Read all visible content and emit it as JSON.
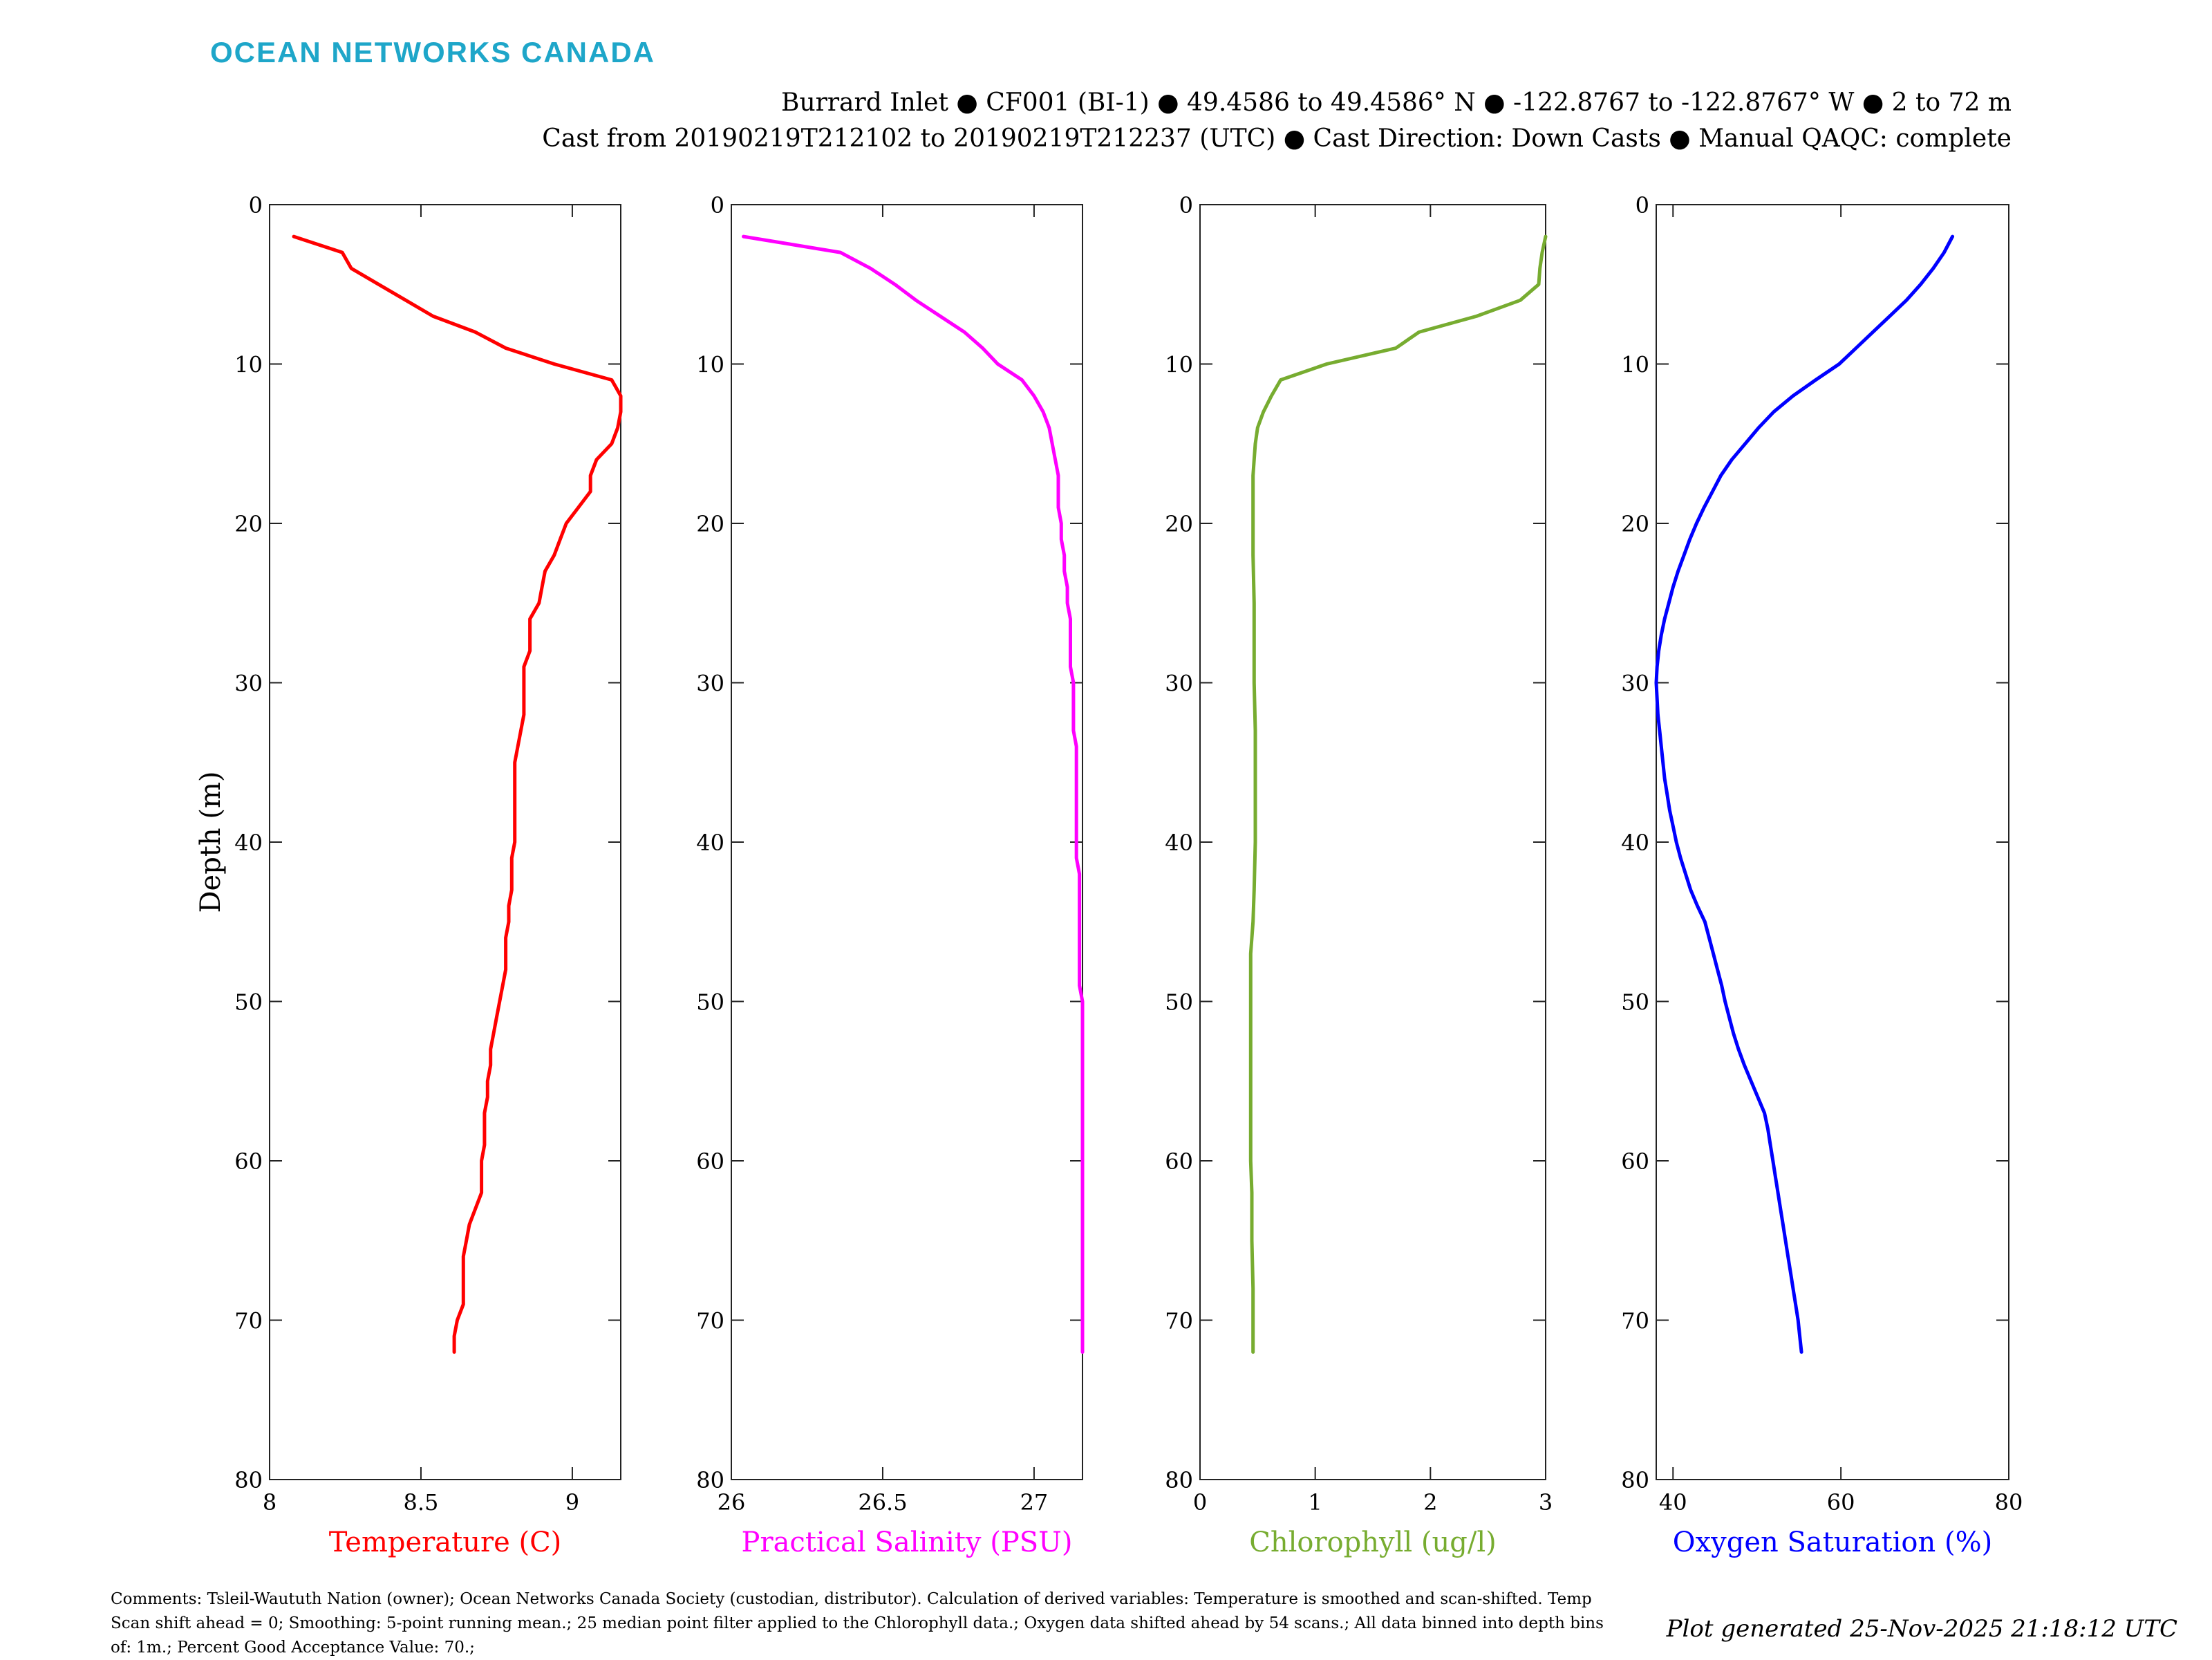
{
  "brand": {
    "logo_text": "OCEAN NETWORKS CANADA",
    "color": "#1ea6c9"
  },
  "header": {
    "line1": "Burrard Inlet ● CF001 (BI-1) ● 49.4586 to 49.4586° N ● -122.8767 to -122.8767° W ● 2 to 72 m",
    "line2": "Cast from 20190219T212102 to 20190219T212237 (UTC) ● Cast Direction: Down Casts ● Manual QAQC: complete"
  },
  "footer": {
    "comments": "Comments: Tsleil-Waututh Nation (owner); Ocean Networks Canada Society (custodian, distributor). Calculation of derived variables: Temperature is smoothed and scan-shifted. Temp Scan shift ahead = 0; Smoothing: 5-point running mean.; 25 median point filter applied to the Chlorophyll data.; Oxygen data shifted ahead by 54 scans.; All data binned into depth bins of: 1m.; Percent Good Acceptance Value: 70.;",
    "generated": "Plot generated 25-Nov-2025 21:18:12 UTC"
  },
  "chart_data": {
    "type": "line",
    "shared_y": {
      "label": "Depth (m)",
      "range": [
        0,
        80
      ],
      "reversed": true,
      "ticks": [
        0,
        10,
        20,
        30,
        40,
        50,
        60,
        70,
        80
      ],
      "tick_labels": [
        "0",
        "10",
        "20",
        "30",
        "40",
        "50",
        "60",
        "70",
        "80"
      ]
    },
    "grid": false,
    "panels": [
      {
        "xlabel": "Temperature (C)",
        "color": "#ff0000",
        "xlim": [
          8,
          9.16
        ],
        "xticks": [
          8,
          8.5,
          9
        ],
        "xtick_labels": [
          "8",
          "8.5",
          "9"
        ],
        "points": [
          [
            8.08,
            2
          ],
          [
            8.24,
            3
          ],
          [
            8.27,
            4
          ],
          [
            8.36,
            5
          ],
          [
            8.45,
            6
          ],
          [
            8.54,
            7
          ],
          [
            8.68,
            8
          ],
          [
            8.78,
            9
          ],
          [
            8.94,
            10
          ],
          [
            9.13,
            11
          ],
          [
            9.16,
            12
          ],
          [
            9.16,
            13
          ],
          [
            9.15,
            14
          ],
          [
            9.13,
            15
          ],
          [
            9.08,
            16
          ],
          [
            9.06,
            17
          ],
          [
            9.06,
            18
          ],
          [
            9.02,
            19
          ],
          [
            8.98,
            20
          ],
          [
            8.96,
            21
          ],
          [
            8.94,
            22
          ],
          [
            8.91,
            23
          ],
          [
            8.9,
            24
          ],
          [
            8.89,
            25
          ],
          [
            8.86,
            26
          ],
          [
            8.86,
            27
          ],
          [
            8.86,
            28
          ],
          [
            8.84,
            29
          ],
          [
            8.84,
            30
          ],
          [
            8.84,
            31
          ],
          [
            8.84,
            32
          ],
          [
            8.83,
            33
          ],
          [
            8.82,
            34
          ],
          [
            8.81,
            35
          ],
          [
            8.81,
            36
          ],
          [
            8.81,
            37
          ],
          [
            8.81,
            38
          ],
          [
            8.81,
            39
          ],
          [
            8.81,
            40
          ],
          [
            8.8,
            41
          ],
          [
            8.8,
            42
          ],
          [
            8.8,
            43
          ],
          [
            8.79,
            44
          ],
          [
            8.79,
            45
          ],
          [
            8.78,
            46
          ],
          [
            8.78,
            47
          ],
          [
            8.78,
            48
          ],
          [
            8.77,
            49
          ],
          [
            8.76,
            50
          ],
          [
            8.75,
            51
          ],
          [
            8.74,
            52
          ],
          [
            8.73,
            53
          ],
          [
            8.73,
            54
          ],
          [
            8.72,
            55
          ],
          [
            8.72,
            56
          ],
          [
            8.71,
            57
          ],
          [
            8.71,
            58
          ],
          [
            8.71,
            59
          ],
          [
            8.7,
            60
          ],
          [
            8.7,
            61
          ],
          [
            8.7,
            62
          ],
          [
            8.68,
            63
          ],
          [
            8.66,
            64
          ],
          [
            8.65,
            65
          ],
          [
            8.64,
            66
          ],
          [
            8.64,
            67
          ],
          [
            8.64,
            68
          ],
          [
            8.64,
            69
          ],
          [
            8.62,
            70
          ],
          [
            8.61,
            71
          ],
          [
            8.61,
            72
          ]
        ]
      },
      {
        "xlabel": "Practical Salinity (PSU)",
        "color": "#ff00ff",
        "xlim": [
          26,
          27.16
        ],
        "xticks": [
          26,
          26.5,
          27
        ],
        "xtick_labels": [
          "26",
          "26.5",
          "27"
        ],
        "points": [
          [
            26.04,
            2
          ],
          [
            26.36,
            3
          ],
          [
            26.46,
            4
          ],
          [
            26.54,
            5
          ],
          [
            26.61,
            6
          ],
          [
            26.69,
            7
          ],
          [
            26.77,
            8
          ],
          [
            26.83,
            9
          ],
          [
            26.88,
            10
          ],
          [
            26.96,
            11
          ],
          [
            27.0,
            12
          ],
          [
            27.03,
            13
          ],
          [
            27.05,
            14
          ],
          [
            27.06,
            15
          ],
          [
            27.07,
            16
          ],
          [
            27.08,
            17
          ],
          [
            27.08,
            18
          ],
          [
            27.08,
            19
          ],
          [
            27.09,
            20
          ],
          [
            27.09,
            21
          ],
          [
            27.1,
            22
          ],
          [
            27.1,
            23
          ],
          [
            27.11,
            24
          ],
          [
            27.11,
            25
          ],
          [
            27.12,
            26
          ],
          [
            27.12,
            27
          ],
          [
            27.12,
            28
          ],
          [
            27.12,
            29
          ],
          [
            27.13,
            30
          ],
          [
            27.13,
            31
          ],
          [
            27.13,
            32
          ],
          [
            27.13,
            33
          ],
          [
            27.14,
            34
          ],
          [
            27.14,
            35
          ],
          [
            27.14,
            36
          ],
          [
            27.14,
            37
          ],
          [
            27.14,
            38
          ],
          [
            27.14,
            39
          ],
          [
            27.14,
            40
          ],
          [
            27.14,
            41
          ],
          [
            27.15,
            42
          ],
          [
            27.15,
            43
          ],
          [
            27.15,
            44
          ],
          [
            27.15,
            45
          ],
          [
            27.15,
            46
          ],
          [
            27.15,
            47
          ],
          [
            27.15,
            48
          ],
          [
            27.15,
            49
          ],
          [
            27.16,
            50
          ],
          [
            27.16,
            52
          ],
          [
            27.16,
            55
          ],
          [
            27.16,
            60
          ],
          [
            27.16,
            65
          ],
          [
            27.16,
            70
          ],
          [
            27.16,
            72
          ]
        ]
      },
      {
        "xlabel": "Chlorophyll (ug/l)",
        "color": "#77ac30",
        "xlim": [
          0,
          3
        ],
        "xticks": [
          0,
          1,
          2,
          3
        ],
        "xtick_labels": [
          "0",
          "1",
          "2",
          "3"
        ],
        "points": [
          [
            3.0,
            2
          ],
          [
            2.97,
            3
          ],
          [
            2.95,
            4
          ],
          [
            2.94,
            5
          ],
          [
            2.78,
            6
          ],
          [
            2.4,
            7
          ],
          [
            1.9,
            8
          ],
          [
            1.7,
            9
          ],
          [
            1.1,
            10
          ],
          [
            0.7,
            11
          ],
          [
            0.62,
            12
          ],
          [
            0.55,
            13
          ],
          [
            0.5,
            14
          ],
          [
            0.48,
            15
          ],
          [
            0.47,
            16
          ],
          [
            0.46,
            17
          ],
          [
            0.46,
            18
          ],
          [
            0.46,
            20
          ],
          [
            0.46,
            22
          ],
          [
            0.47,
            25
          ],
          [
            0.47,
            28
          ],
          [
            0.47,
            30
          ],
          [
            0.48,
            33
          ],
          [
            0.48,
            36
          ],
          [
            0.48,
            40
          ],
          [
            0.47,
            43
          ],
          [
            0.46,
            45
          ],
          [
            0.44,
            47
          ],
          [
            0.44,
            49
          ],
          [
            0.44,
            50
          ],
          [
            0.44,
            52
          ],
          [
            0.44,
            55
          ],
          [
            0.44,
            58
          ],
          [
            0.44,
            60
          ],
          [
            0.45,
            62
          ],
          [
            0.45,
            65
          ],
          [
            0.46,
            68
          ],
          [
            0.46,
            70
          ],
          [
            0.46,
            72
          ]
        ]
      },
      {
        "xlabel": "Oxygen Saturation (%)",
        "color": "#0000ff",
        "xlim": [
          38,
          80
        ],
        "xticks": [
          40,
          60,
          80
        ],
        "xtick_labels": [
          "40",
          "60",
          "80"
        ],
        "points": [
          [
            73.3,
            2
          ],
          [
            72.3,
            3
          ],
          [
            71,
            4
          ],
          [
            69.5,
            5
          ],
          [
            67.8,
            6
          ],
          [
            65.8,
            7
          ],
          [
            63.8,
            8
          ],
          [
            61.8,
            9
          ],
          [
            59.8,
            10
          ],
          [
            57,
            11
          ],
          [
            54.3,
            12
          ],
          [
            52,
            13
          ],
          [
            50.2,
            14
          ],
          [
            48.6,
            15
          ],
          [
            47,
            16
          ],
          [
            45.7,
            17
          ],
          [
            44.7,
            18
          ],
          [
            43.7,
            19
          ],
          [
            42.8,
            20
          ],
          [
            42,
            21
          ],
          [
            41.3,
            22
          ],
          [
            40.6,
            23
          ],
          [
            40,
            24
          ],
          [
            39.5,
            25
          ],
          [
            39,
            26
          ],
          [
            38.6,
            27
          ],
          [
            38.3,
            28
          ],
          [
            38.1,
            29
          ],
          [
            38,
            30
          ],
          [
            38.1,
            31
          ],
          [
            38.2,
            32
          ],
          [
            38.4,
            33
          ],
          [
            38.6,
            34
          ],
          [
            38.8,
            35
          ],
          [
            39,
            36
          ],
          [
            39.3,
            37
          ],
          [
            39.6,
            38
          ],
          [
            40,
            39
          ],
          [
            40.4,
            40
          ],
          [
            40.9,
            41
          ],
          [
            41.5,
            42
          ],
          [
            42.1,
            43
          ],
          [
            42.9,
            44
          ],
          [
            43.8,
            45
          ],
          [
            44.3,
            46
          ],
          [
            44.8,
            47
          ],
          [
            45.3,
            48
          ],
          [
            45.8,
            49
          ],
          [
            46.2,
            50
          ],
          [
            46.7,
            51
          ],
          [
            47.2,
            52
          ],
          [
            47.8,
            53
          ],
          [
            48.5,
            54
          ],
          [
            49.3,
            55
          ],
          [
            50.1,
            56
          ],
          [
            50.9,
            57
          ],
          [
            51.3,
            58
          ],
          [
            51.6,
            59
          ],
          [
            51.9,
            60
          ],
          [
            52.2,
            61
          ],
          [
            52.5,
            62
          ],
          [
            52.8,
            63
          ],
          [
            53.1,
            64
          ],
          [
            53.4,
            65
          ],
          [
            53.7,
            66
          ],
          [
            54,
            67
          ],
          [
            54.3,
            68
          ],
          [
            54.6,
            69
          ],
          [
            54.9,
            70
          ],
          [
            55.1,
            71
          ],
          [
            55.3,
            72
          ]
        ]
      }
    ]
  }
}
